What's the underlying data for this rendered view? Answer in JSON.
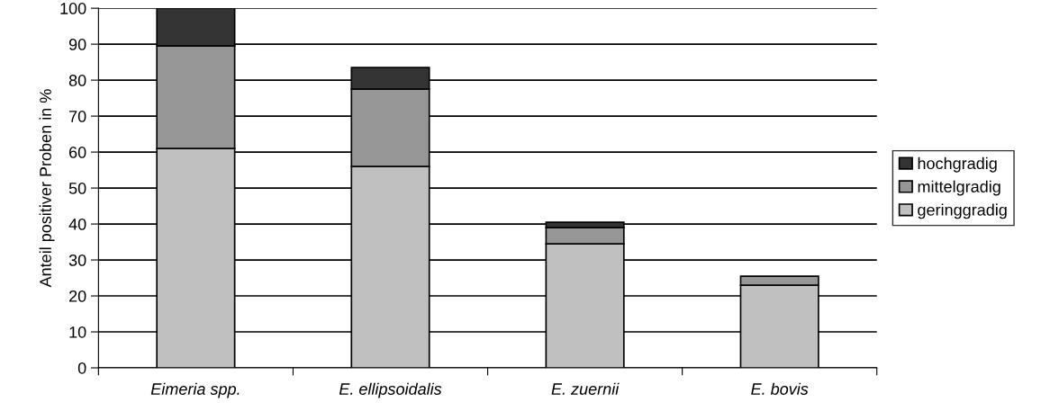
{
  "chart_data": {
    "type": "bar",
    "stacked": true,
    "ylabel": "Anteil positiver Proben in %",
    "categories": [
      "Eimeria spp.",
      "E. ellipsoidalis",
      "E. zuernii",
      "E. bovis"
    ],
    "series": [
      {
        "name": "geringgradig",
        "color": "#c0c0c0",
        "values": [
          61,
          56,
          34.5,
          23
        ]
      },
      {
        "name": "mittelgradig",
        "color": "#969696",
        "values": [
          28.5,
          21.5,
          4.5,
          2.5
        ]
      },
      {
        "name": "hochgradig",
        "color": "#333333",
        "values": [
          10.5,
          6,
          1.5,
          null
        ]
      }
    ],
    "ylim": [
      0,
      100
    ],
    "yticks": [
      0,
      10,
      20,
      30,
      40,
      50,
      60,
      70,
      80,
      90,
      100
    ],
    "grid": "y",
    "legend": "right"
  }
}
